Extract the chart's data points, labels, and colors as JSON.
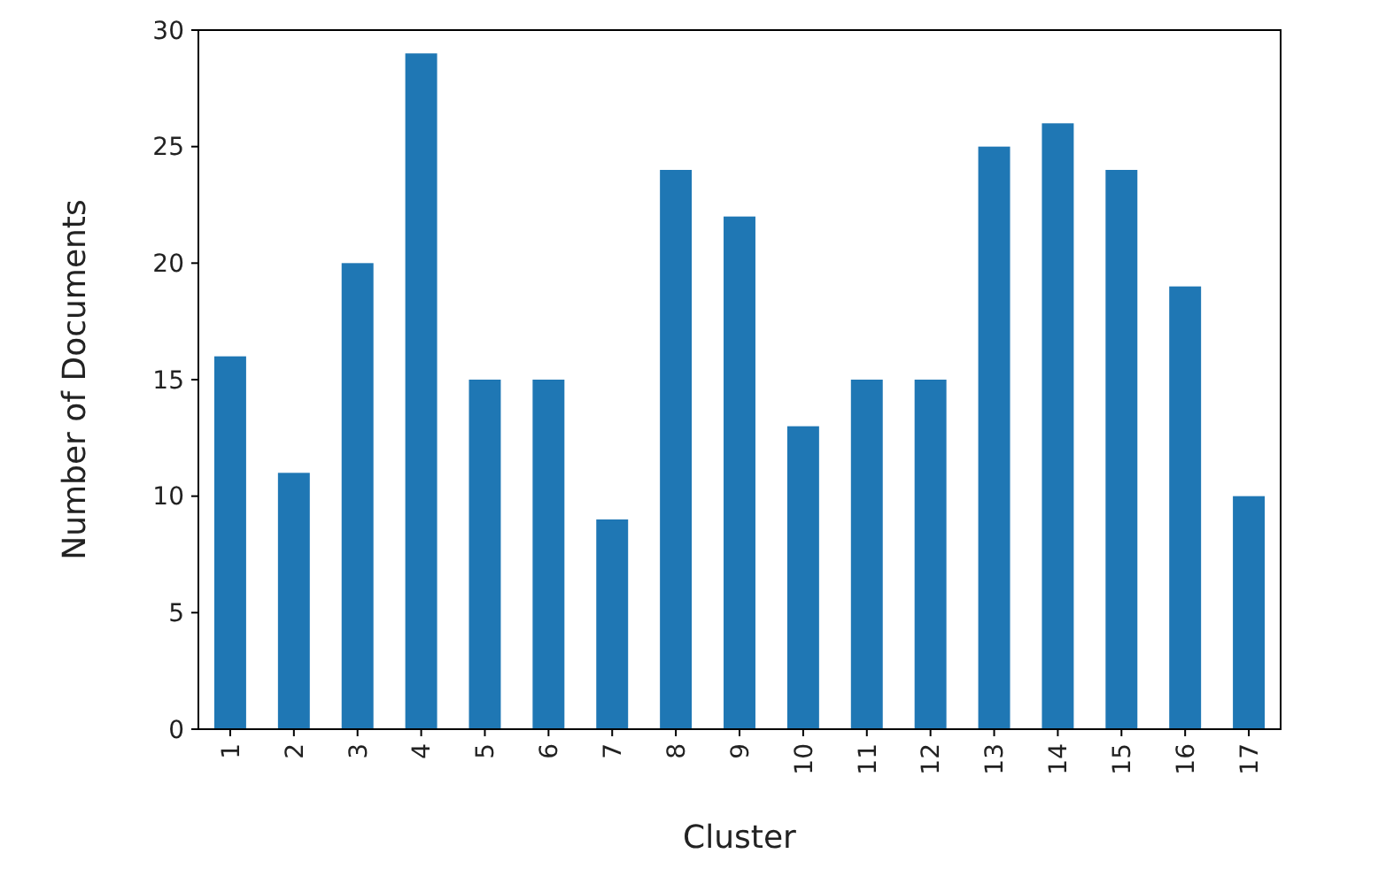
{
  "chart_data": {
    "type": "bar",
    "xlabel": "Cluster",
    "ylabel": "Number of Documents",
    "categories": [
      "1",
      "2",
      "3",
      "4",
      "5",
      "6",
      "7",
      "8",
      "9",
      "10",
      "11",
      "12",
      "13",
      "14",
      "15",
      "16",
      "17"
    ],
    "values": [
      16,
      11,
      20,
      29,
      15,
      15,
      9,
      24,
      22,
      13,
      15,
      15,
      25,
      26,
      24,
      19,
      10
    ],
    "color": "#1f77b4",
    "ylim": [
      0,
      30
    ],
    "yticks": [
      0,
      5,
      10,
      15,
      20,
      25,
      30
    ],
    "grid": false
  }
}
